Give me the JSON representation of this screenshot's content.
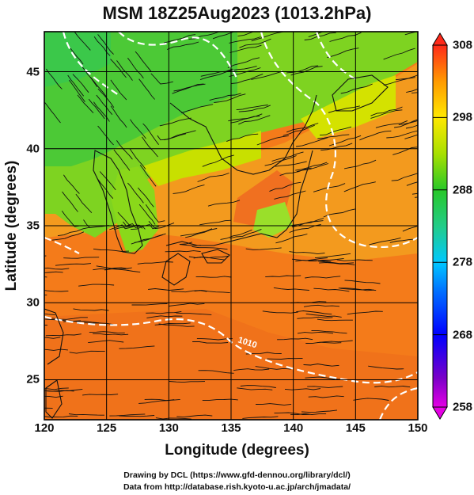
{
  "title": "MSM 18Z25Aug2023 (1013.2hPa)",
  "axes": {
    "xlabel": "Longitude (degrees)",
    "ylabel": "Latitude (degrees)",
    "xticks": [
      "120",
      "125",
      "130",
      "135",
      "140",
      "145",
      "150"
    ],
    "yticks": [
      "25",
      "30",
      "35",
      "40",
      "45"
    ]
  },
  "colorbar": {
    "ticks": [
      "308",
      "298",
      "288",
      "278",
      "268",
      "258"
    ]
  },
  "contour_label": "1010",
  "credits": {
    "line1": "Drawing by DCL (https://www.gfd-dennou.org/library/dcl/)",
    "line2": "Data from http://database.rish.kyoto-u.ac.jp/arch/jmadata/"
  },
  "chart_data": {
    "type": "map",
    "xlim": [
      120,
      150
    ],
    "ylim": [
      22.4,
      47.6
    ],
    "clim": [
      258,
      308
    ],
    "units": "K",
    "grid": true,
    "colors": {
      "warm": "#ff7a1a",
      "mid": "#f3e600",
      "cool": "#3cc83c",
      "contour": "#ffffff"
    }
  }
}
